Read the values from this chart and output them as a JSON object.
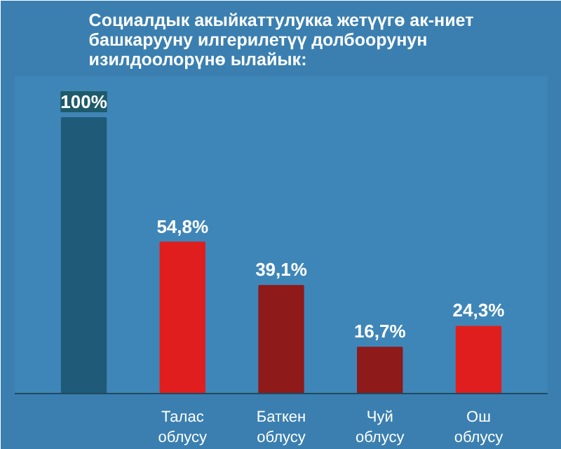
{
  "chart_data": {
    "type": "bar",
    "title": "Социалдык акыйкаттулукка жетүүгө ак-ниет башкарууну илгерилетүү долбоорунун изилдоолорүнө ылайык:",
    "categories": [
      null,
      "Талас облусу",
      "Баткен облусу",
      "Чуй облусу",
      "Ош облусу"
    ],
    "values": [
      100,
      54.8,
      39.1,
      16.7,
      24.3
    ],
    "colors": [
      "#1f5a78",
      "#e01e1e",
      "#8e1a1a",
      "#8e1a1a",
      "#e01e1e"
    ],
    "value_labels": [
      "100%",
      "54,8%",
      "39,1%",
      "16,7%",
      "24,3%"
    ],
    "grid": false
  }
}
